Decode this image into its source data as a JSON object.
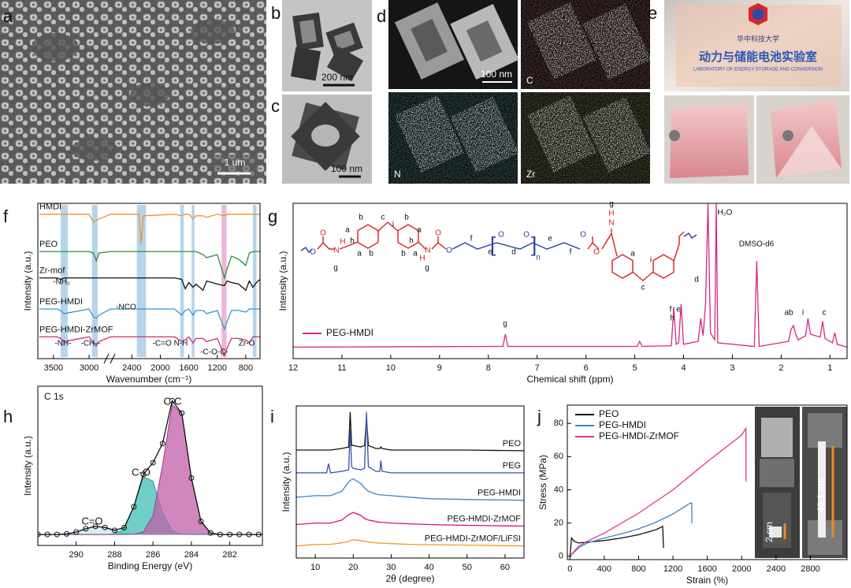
{
  "panel_labels": [
    "a",
    "b",
    "c",
    "d",
    "e",
    "f",
    "g",
    "h",
    "i",
    "j"
  ],
  "images": {
    "a_scale": "1 um",
    "b_scale": "200 nm",
    "c_scale": "100 nm",
    "d_scale": "100 nm",
    "d_maps": [
      "C",
      "N",
      "Zr"
    ],
    "e_text": [
      "华中科技大学",
      "动力与储能电池实验室",
      "LABORATORY OF ENERGY STORAGE AND CONVERSION"
    ],
    "j_scales": [
      "2 cm",
      "40.1 cm"
    ]
  },
  "structure": [
    "O",
    "O",
    "N",
    "H",
    "g",
    "a",
    "b",
    "c",
    "i",
    "b",
    "a",
    "h",
    "h",
    "a",
    "b",
    "b",
    "a",
    "N",
    "H",
    "g",
    "O",
    "O",
    "f",
    "e",
    "O",
    "d",
    "O",
    "n",
    "e",
    "f",
    "O",
    "O",
    "g",
    "H",
    "N",
    "a",
    "c",
    "i"
  ],
  "chart_data": [
    {
      "type": "line",
      "xlabel": "Wavenumber (cm⁻¹)",
      "ylabel": "Intensity (a.u.)",
      "xlim": [
        3720,
        600
      ],
      "ylim": [
        0,
        100
      ],
      "xticks": [
        3500,
        3000,
        2400,
        2000,
        1600,
        1200,
        800
      ],
      "legend": "inline-left",
      "x": [
        3700,
        3450,
        3400,
        3350,
        3000,
        2940,
        2900,
        2860,
        2700,
        2300,
        2270,
        2240,
        1800,
        1700,
        1650,
        1600,
        1540,
        1500,
        1400,
        1350,
        1200,
        1100,
        1060,
        1000,
        900,
        800,
        750,
        700,
        650,
        600
      ],
      "bands": [
        {
          "x0": 3400,
          "x1": 3300,
          "color": "#a9cdea"
        },
        {
          "x0": 2960,
          "x1": 2880,
          "color": "#a9cdea"
        },
        {
          "x0": 2330,
          "x1": 2200,
          "color": "#a9cdea"
        },
        {
          "x0": 1720,
          "x1": 1670,
          "color": "#a9cdea"
        },
        {
          "x0": 1560,
          "x1": 1520,
          "color": "#a9cdea"
        },
        {
          "x0": 1140,
          "x1": 1070,
          "color": "#e8a9d4"
        },
        {
          "x0": 700,
          "x1": 650,
          "color": "#a9cdea"
        }
      ],
      "series": [
        {
          "name": "HMDI",
          "color": "#f0932b",
          "values": [
            93,
            93,
            93,
            93,
            93,
            88,
            89,
            90,
            93,
            93,
            74,
            92,
            93,
            92,
            93,
            93,
            90,
            92,
            92,
            91,
            93,
            92,
            93,
            93,
            93,
            93,
            93,
            93,
            93,
            93
          ]
        },
        {
          "name": "PEO",
          "color": "#2e8b3a",
          "values": [
            69,
            69,
            69,
            69,
            69,
            68,
            63,
            68,
            69,
            69,
            69,
            69,
            69,
            69,
            69,
            69,
            69,
            69,
            67,
            65,
            67,
            52,
            58,
            66,
            64,
            60,
            68,
            69,
            69,
            69
          ]
        },
        {
          "name": "Zr-mof",
          "color": "#111111",
          "values": [
            52,
            52,
            51,
            52,
            52,
            52,
            52,
            52,
            52,
            52,
            52,
            52,
            52,
            51,
            45,
            49,
            46,
            48,
            44,
            50,
            48,
            47,
            50,
            49,
            48,
            44,
            50,
            46,
            49,
            51
          ]
        },
        {
          "name": "PEG-HMDI",
          "color": "#3a94cc",
          "values": [
            32,
            32,
            31,
            29,
            32,
            27,
            26,
            28,
            32,
            32,
            32,
            32,
            32,
            28,
            31,
            32,
            28,
            31,
            31,
            29,
            31,
            19,
            24,
            31,
            31,
            30,
            32,
            32,
            32,
            32
          ]
        },
        {
          "name": "PEG-HMDI-ZrMOF",
          "color": "#cc2a7a",
          "values": [
            14,
            14,
            13,
            11,
            14,
            10,
            9,
            11,
            14,
            14,
            14,
            14,
            14,
            11,
            12,
            14,
            10,
            13,
            13,
            11,
            13,
            2,
            7,
            13,
            13,
            12,
            10,
            14,
            14,
            14
          ]
        }
      ],
      "annotations": [
        "-NH₂",
        "-NCO",
        "-NH-",
        "-CH₂-",
        "-C=O N-H",
        "-C-O-C-",
        "Zr-O"
      ]
    },
    {
      "type": "line",
      "xlabel": "Chemical shift  (ppm)",
      "ylabel": "Intensity (a.u.)",
      "xlim": [
        12,
        0.65
      ],
      "ylim": [
        -8,
        100
      ],
      "xticks": [
        12,
        11,
        10,
        9,
        8,
        7,
        6,
        5,
        4,
        3,
        2,
        1
      ],
      "legend": "lower left",
      "x": [
        12,
        7.7,
        7.65,
        7.6,
        4.95,
        4.9,
        4.85,
        4.25,
        4.2,
        4.15,
        4.1,
        4.05,
        4.0,
        3.7,
        3.65,
        3.6,
        3.55,
        3.5,
        3.45,
        3.36,
        3.33,
        3.3,
        2.55,
        2.5,
        2.45,
        1.85,
        1.8,
        1.75,
        1.7,
        1.65,
        1.5,
        1.45,
        1.4,
        1.2,
        1.15,
        1.1,
        0.95,
        0.9,
        0.85,
        0.65
      ],
      "series": [
        {
          "name": "PEG-HMDI",
          "color": "#d6287f",
          "values": [
            0,
            0.5,
            9,
            0.5,
            0.5,
            4,
            0.5,
            1,
            28,
            2,
            3,
            30,
            2,
            4,
            20,
            8,
            30,
            100,
            10,
            5,
            100,
            3,
            0.5,
            60,
            0.5,
            4,
            12,
            15,
            9,
            5,
            8,
            20,
            9,
            7,
            18,
            6,
            3,
            10,
            2,
            0
          ]
        }
      ],
      "annotations": [
        "g",
        "f",
        "e",
        "h",
        "d",
        "H₂O",
        "DMSO-d6",
        "ab",
        "i",
        "c"
      ]
    },
    {
      "type": "line",
      "title": "C 1s",
      "xlabel": "Binding Energy (eV)",
      "ylabel": "Intensity (a.u.)",
      "xlim": [
        292,
        280.3
      ],
      "ylim": [
        -8,
        108
      ],
      "xticks": [
        290,
        288,
        286,
        284,
        282
      ],
      "x": [
        292,
        291.5,
        291,
        290.5,
        290,
        289.5,
        289,
        288.5,
        288,
        287.5,
        287,
        286.5,
        286,
        285.5,
        285,
        284.5,
        284,
        283.5,
        283,
        282.5,
        282,
        281.5,
        281,
        280.5,
        280
      ],
      "series": [
        {
          "color": "#5bb7c9",
          "fill": "#c4e8f1",
          "values": [
            0,
            0,
            0,
            0.4,
            1.7,
            4.2,
            5.9,
            5.1,
            2.6,
            0.8,
            0.1,
            0,
            0,
            0,
            0,
            0,
            0,
            0,
            0,
            0,
            0,
            0,
            0,
            0,
            0
          ]
        },
        {
          "color": "#229f9a",
          "fill": "#3fbdb6",
          "values": [
            0,
            0,
            0,
            0,
            0,
            0,
            0,
            0,
            0.4,
            4.2,
            20.0,
            42.1,
            38.8,
            15.6,
            2.8,
            0.2,
            0,
            0,
            0,
            0,
            0,
            0,
            0,
            0,
            0
          ]
        },
        {
          "color": "#9a3d86",
          "fill": "#bf5fa8",
          "values": [
            0,
            0,
            0,
            0,
            0,
            0,
            0,
            0,
            0,
            0,
            0.1,
            1.8,
            13.5,
            50.6,
            94.6,
            88.2,
            41.1,
            9.5,
            1.1,
            0,
            0,
            0,
            0,
            0,
            0
          ]
        },
        {
          "color": "#111111",
          "values": [
            0,
            0,
            0,
            0.4,
            1.7,
            4.2,
            5.9,
            5.1,
            3.0,
            5.0,
            20.2,
            43.9,
            52.3,
            66.2,
            97.4,
            88.4,
            41.1,
            9.5,
            1.1,
            0,
            0,
            0,
            0,
            0,
            0
          ]
        },
        {
          "color": "#111111",
          "marker": "circle",
          "values": [
            0,
            0,
            0,
            0.4,
            1.7,
            4.2,
            5.9,
            5.1,
            3.0,
            5.0,
            20.2,
            43.9,
            52.3,
            66.2,
            97.4,
            88.4,
            41.1,
            9.5,
            1.1,
            0,
            0,
            0,
            0,
            0,
            0
          ]
        }
      ],
      "annotations": [
        "C=O",
        "C-O",
        "C-C"
      ]
    },
    {
      "type": "line",
      "xlabel": "2θ (degree)",
      "ylabel": "Intensity (a.u.)",
      "xlim": [
        5,
        65
      ],
      "ylim": [
        0,
        100
      ],
      "xticks": [
        10,
        20,
        30,
        40,
        50,
        60
      ],
      "legend": "inline-right",
      "x": [
        5,
        10,
        13,
        13.5,
        14,
        17,
        18.8,
        19.2,
        19.6,
        20,
        22,
        23.0,
        23.5,
        24.0,
        26,
        27,
        27.3,
        27.6,
        30,
        35,
        40,
        50,
        65
      ],
      "series": [
        {
          "name": "PEO",
          "color": "#111111",
          "values": [
            71,
            71,
            71,
            71,
            71,
            72,
            73,
            96,
            74,
            74,
            73,
            74,
            92,
            74,
            72,
            72,
            73,
            72,
            71,
            71,
            71,
            71,
            70.5
          ]
        },
        {
          "name": "PEG",
          "color": "#3452a4",
          "values": [
            56,
            56,
            56,
            62,
            56,
            57,
            58,
            85,
            60,
            59,
            58,
            59,
            96,
            60,
            57,
            57,
            64,
            57,
            56,
            56,
            56,
            56,
            56
          ]
        },
        {
          "name": "PEG-HMDI",
          "color": "#3a85c4",
          "values": [
            40,
            41,
            41,
            41,
            41,
            44,
            50,
            51,
            51.5,
            52,
            49,
            46,
            45,
            44,
            42,
            41.5,
            41.5,
            41.5,
            41,
            40,
            39,
            38.5,
            38
          ]
        },
        {
          "name": "PEG-HMDI-ZrMOF",
          "color": "#d6117e",
          "values": [
            22,
            23,
            23,
            23,
            23,
            25,
            28.5,
            29,
            29.5,
            30,
            28,
            26,
            25.5,
            25,
            24,
            23.5,
            23.5,
            23.5,
            23,
            22.5,
            22,
            21.5,
            21
          ]
        },
        {
          "name": "PEG-HMDI-ZrMOF/LiFSI",
          "color": "#f09a2b",
          "values": [
            8,
            9,
            9,
            9,
            9,
            10,
            11,
            11.5,
            11.8,
            12,
            11.5,
            11,
            10.8,
            10.6,
            10,
            9.8,
            9.8,
            9.8,
            9.5,
            9,
            8.8,
            8.5,
            8
          ]
        }
      ]
    },
    {
      "type": "line",
      "xlabel": "Strain (%)",
      "ylabel": "Stress (MPa)",
      "xlim": [
        -30,
        3227
      ],
      "ylim": [
        -2,
        91
      ],
      "xticks": [
        0,
        400,
        800,
        1200,
        1600,
        2000,
        2400,
        2800
      ],
      "yticks": [
        0,
        20,
        40,
        60,
        80
      ],
      "legend": "upper left",
      "series": [
        {
          "name": "PEO",
          "color": "#111111",
          "x": [
            0,
            20,
            50,
            100,
            200,
            400,
            600,
            800,
            1000,
            1080,
            1090
          ],
          "values": [
            0,
            11,
            9,
            8,
            8.5,
            9.5,
            11,
            13,
            16,
            18,
            5
          ]
        },
        {
          "name": "PEG-HMDI",
          "color": "#3a85c4",
          "x": [
            0,
            100,
            200,
            400,
            600,
            800,
            1000,
            1200,
            1400,
            1420,
            1420
          ],
          "values": [
            0,
            5,
            8,
            11,
            13.5,
            16.5,
            20.5,
            25.5,
            32,
            32,
            20
          ]
        },
        {
          "name": "PEG-HMDI-ZrMOF",
          "color": "#e0358f",
          "x": [
            0,
            100,
            200,
            400,
            800,
            1200,
            1600,
            2000,
            2050,
            2050
          ],
          "values": [
            0,
            6,
            9,
            14,
            26,
            40,
            57,
            73,
            77,
            45
          ]
        }
      ]
    }
  ]
}
